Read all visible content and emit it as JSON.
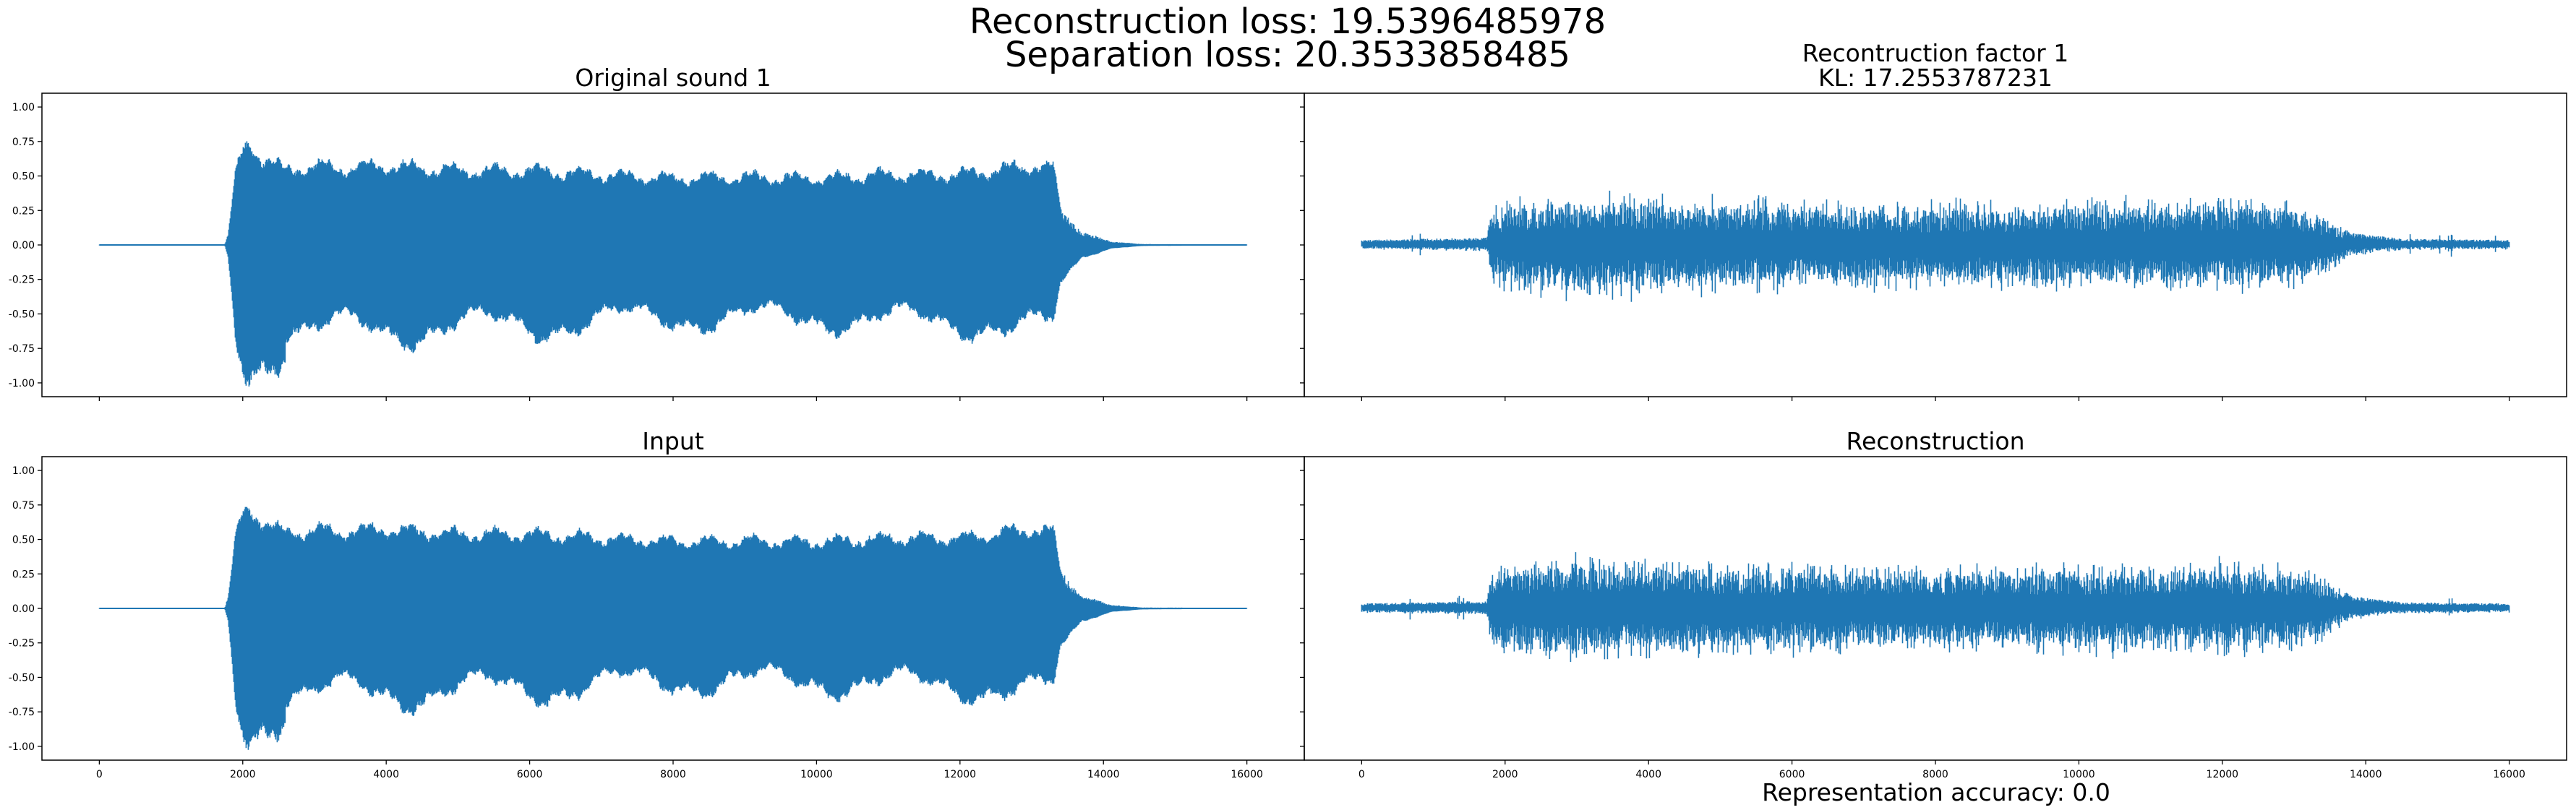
{
  "figure": {
    "suptitle_line1": "Reconstruction loss: 19.5396485978",
    "suptitle_line2": "Separation loss: 20.3533858485",
    "footer": "Representation accuracy: 0.0",
    "line_color": "#1f77b4"
  },
  "chart_data": [
    {
      "type": "line",
      "id": "original",
      "title_lines": [
        "Original sound 1"
      ],
      "xlim": [
        -800,
        16800
      ],
      "ylim": [
        -1.1,
        1.1
      ],
      "xticks": [
        0,
        2000,
        4000,
        6000,
        8000,
        10000,
        12000,
        14000,
        16000
      ],
      "yticks": [
        -1.0,
        -0.75,
        -0.5,
        -0.25,
        0.0,
        0.25,
        0.5,
        0.75,
        1.0
      ],
      "show_xticklabels": false,
      "show_yticklabels": true,
      "signal": {
        "kind": "tonal",
        "length": 16000,
        "onset": 1800,
        "offset": 13400,
        "envelope": [
          [
            0,
            0.003
          ],
          [
            1750,
            0.005
          ],
          [
            1800,
            0.1
          ],
          [
            1900,
            0.55
          ],
          [
            2000,
            0.72
          ],
          [
            2100,
            0.78
          ],
          [
            2200,
            0.72
          ],
          [
            2400,
            0.65
          ],
          [
            2600,
            0.58
          ],
          [
            3000,
            0.62
          ],
          [
            3300,
            0.6
          ],
          [
            4000,
            0.62
          ],
          [
            5000,
            0.58
          ],
          [
            6000,
            0.58
          ],
          [
            7000,
            0.55
          ],
          [
            8000,
            0.52
          ],
          [
            9000,
            0.53
          ],
          [
            10000,
            0.52
          ],
          [
            11000,
            0.55
          ],
          [
            12000,
            0.55
          ],
          [
            13000,
            0.62
          ],
          [
            13300,
            0.6
          ],
          [
            13400,
            0.3
          ],
          [
            13700,
            0.1
          ],
          [
            14100,
            0.03
          ],
          [
            14500,
            0.008
          ],
          [
            16000,
            0.002
          ]
        ]
      }
    },
    {
      "type": "line",
      "id": "recon_factor",
      "title_lines": [
        "Recontruction factor 1",
        "KL: 17.2553787231"
      ],
      "xlim": [
        -800,
        16800
      ],
      "ylim": [
        -1.1,
        1.1
      ],
      "xticks": [
        0,
        2000,
        4000,
        6000,
        8000,
        10000,
        12000,
        14000,
        16000
      ],
      "yticks": [
        -1.0,
        -0.75,
        -0.5,
        -0.25,
        0.0,
        0.25,
        0.5,
        0.75,
        1.0
      ],
      "show_xticklabels": false,
      "show_yticklabels": false,
      "signal": {
        "kind": "noisy",
        "length": 16000,
        "onset": 1800,
        "offset": 13700,
        "envelope": [
          [
            0,
            0.02
          ],
          [
            1750,
            0.03
          ],
          [
            1800,
            0.15
          ],
          [
            2000,
            0.22
          ],
          [
            3000,
            0.25
          ],
          [
            5000,
            0.22
          ],
          [
            8000,
            0.2
          ],
          [
            10000,
            0.21
          ],
          [
            12000,
            0.22
          ],
          [
            13000,
            0.2
          ],
          [
            13400,
            0.15
          ],
          [
            13800,
            0.05
          ],
          [
            14500,
            0.025
          ],
          [
            16000,
            0.02
          ]
        ]
      }
    },
    {
      "type": "line",
      "id": "input",
      "title_lines": [
        "Input"
      ],
      "xlim": [
        -800,
        16800
      ],
      "ylim": [
        -1.1,
        1.1
      ],
      "xticks": [
        0,
        2000,
        4000,
        6000,
        8000,
        10000,
        12000,
        14000,
        16000
      ],
      "yticks": [
        -1.0,
        -0.75,
        -0.5,
        -0.25,
        0.0,
        0.25,
        0.5,
        0.75,
        1.0
      ],
      "show_xticklabels": true,
      "show_yticklabels": true,
      "signal": {
        "kind": "tonal",
        "length": 16000,
        "onset": 1800,
        "offset": 13400,
        "envelope": [
          [
            0,
            0.003
          ],
          [
            1750,
            0.005
          ],
          [
            1800,
            0.1
          ],
          [
            1900,
            0.55
          ],
          [
            2000,
            0.72
          ],
          [
            2100,
            0.78
          ],
          [
            2200,
            0.72
          ],
          [
            2400,
            0.65
          ],
          [
            2600,
            0.58
          ],
          [
            3000,
            0.62
          ],
          [
            3300,
            0.6
          ],
          [
            4000,
            0.62
          ],
          [
            5000,
            0.58
          ],
          [
            6000,
            0.58
          ],
          [
            7000,
            0.55
          ],
          [
            8000,
            0.52
          ],
          [
            9000,
            0.53
          ],
          [
            10000,
            0.52
          ],
          [
            11000,
            0.55
          ],
          [
            12000,
            0.55
          ],
          [
            13000,
            0.62
          ],
          [
            13300,
            0.6
          ],
          [
            13400,
            0.3
          ],
          [
            13700,
            0.1
          ],
          [
            14100,
            0.03
          ],
          [
            14500,
            0.008
          ],
          [
            16000,
            0.002
          ]
        ]
      }
    },
    {
      "type": "line",
      "id": "reconstruction",
      "title_lines": [
        "Reconstruction"
      ],
      "xlim": [
        -800,
        16800
      ],
      "ylim": [
        -1.1,
        1.1
      ],
      "xticks": [
        0,
        2000,
        4000,
        6000,
        8000,
        10000,
        12000,
        14000,
        16000
      ],
      "yticks": [
        -1.0,
        -0.75,
        -0.5,
        -0.25,
        0.0,
        0.25,
        0.5,
        0.75,
        1.0
      ],
      "show_xticklabels": true,
      "show_yticklabels": false,
      "signal": {
        "kind": "noisy",
        "length": 16000,
        "onset": 1800,
        "offset": 13700,
        "envelope": [
          [
            0,
            0.02
          ],
          [
            1750,
            0.03
          ],
          [
            1800,
            0.15
          ],
          [
            2000,
            0.22
          ],
          [
            3000,
            0.25
          ],
          [
            5000,
            0.22
          ],
          [
            8000,
            0.2
          ],
          [
            10000,
            0.21
          ],
          [
            12000,
            0.22
          ],
          [
            13000,
            0.2
          ],
          [
            13400,
            0.15
          ],
          [
            13800,
            0.05
          ],
          [
            14500,
            0.025
          ],
          [
            16000,
            0.02
          ]
        ]
      }
    }
  ]
}
